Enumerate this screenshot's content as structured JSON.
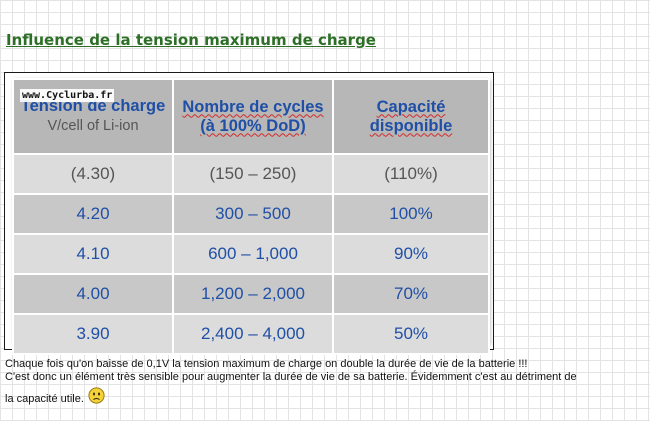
{
  "heading": "Influence de la tension maximum de charge",
  "watermark": "www.Cyclurba.fr",
  "table": {
    "headers": {
      "col1_main": "Tension de charge",
      "col1_sub": "V/cell of Li-ion",
      "col2": "Nombre de cycles (à 100% DoD)",
      "col3": "Capacité disponible"
    },
    "rows": [
      {
        "tension": "(4.30)",
        "cycles": "(150 – 250)",
        "capacite": "(110%)"
      },
      {
        "tension": "4.20",
        "cycles": "300 – 500",
        "capacite": "100%"
      },
      {
        "tension": "4.10",
        "cycles": "600 – 1,000",
        "capacite": "90%"
      },
      {
        "tension": "4.00",
        "cycles": "1,200 – 2,000",
        "capacite": "70%"
      },
      {
        "tension": "3.90",
        "cycles": "2,400 – 4,000",
        "capacite": "50%"
      }
    ]
  },
  "note": {
    "line1": "Chaque fois qu'on baisse de 0,1V la tension maximum de charge on double la durée de vie de la batterie !!!",
    "line2": "C'est donc un élément très sensible pour augmenter la durée de vie de sa batterie. Évidemment c'est au détriment de",
    "line3": "la capacité utile."
  },
  "icons": {
    "emoji": "sad-face-icon"
  },
  "colors": {
    "heading": "#2e6f28",
    "header_text": "#1f4fa6",
    "header_bg": "#b7b7b7",
    "row_light": "#dcdcdc",
    "row_dark": "#c8c8c8"
  }
}
